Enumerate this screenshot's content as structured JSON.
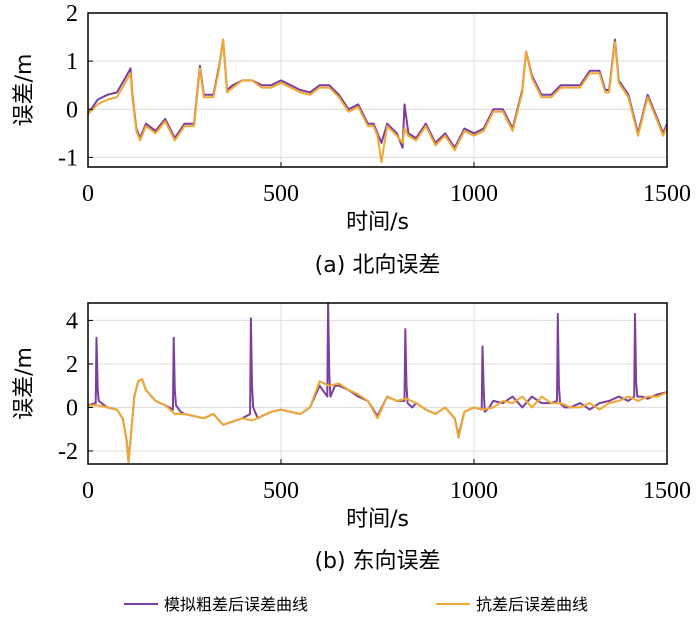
{
  "colors": {
    "series1": "#7b3f9e",
    "series2": "#f0a830",
    "grid": "#dcdcdc",
    "axis": "#000000"
  },
  "legend": {
    "position": "bottom-center"
  },
  "chart_data": [
    {
      "type": "line",
      "caption": "(a) 北向误差",
      "xlabel": "时间/s",
      "ylabel": "误差/m",
      "xlim": [
        0,
        1500
      ],
      "ylim": [
        -1.2,
        2
      ],
      "xticks": [
        0,
        500,
        1000,
        1500
      ],
      "yticks": [
        -1,
        0,
        1,
        2
      ],
      "grid": true,
      "series": [
        {
          "name": "模拟粗差后误差曲线",
          "color": "#7b3f9e",
          "x": [
            0,
            25,
            50,
            75,
            100,
            110,
            115,
            125,
            135,
            150,
            175,
            200,
            225,
            250,
            275,
            290,
            300,
            325,
            340,
            350,
            360,
            375,
            400,
            425,
            450,
            475,
            500,
            525,
            550,
            575,
            600,
            625,
            650,
            675,
            700,
            725,
            740,
            750,
            760,
            775,
            800,
            815,
            820,
            830,
            850,
            875,
            900,
            925,
            950,
            975,
            1000,
            1025,
            1050,
            1075,
            1100,
            1125,
            1135,
            1150,
            1175,
            1200,
            1225,
            1250,
            1275,
            1300,
            1325,
            1340,
            1350,
            1365,
            1375,
            1400,
            1425,
            1450,
            1475,
            1490,
            1500
          ],
          "y": [
            -0.1,
            0.2,
            0.3,
            0.35,
            0.7,
            0.85,
            0.3,
            -0.4,
            -0.6,
            -0.3,
            -0.45,
            -0.2,
            -0.6,
            -0.3,
            -0.3,
            0.9,
            0.3,
            0.3,
            0.9,
            1.45,
            0.4,
            0.5,
            0.6,
            0.6,
            0.5,
            0.5,
            0.6,
            0.5,
            0.4,
            0.35,
            0.5,
            0.5,
            0.3,
            0.0,
            0.1,
            -0.3,
            -0.3,
            -0.5,
            -0.7,
            -0.3,
            -0.5,
            -0.8,
            0.1,
            -0.5,
            -0.6,
            -0.3,
            -0.7,
            -0.5,
            -0.8,
            -0.4,
            -0.5,
            -0.4,
            0.0,
            0.0,
            -0.4,
            0.4,
            1.2,
            0.7,
            0.3,
            0.3,
            0.5,
            0.5,
            0.5,
            0.8,
            0.8,
            0.4,
            0.4,
            1.45,
            0.6,
            0.3,
            -0.5,
            0.3,
            -0.2,
            -0.5,
            -0.3
          ]
        },
        {
          "name": "抗差后误差曲线",
          "color": "#f0a830",
          "x": [
            0,
            25,
            50,
            75,
            100,
            110,
            115,
            125,
            135,
            150,
            175,
            200,
            225,
            250,
            275,
            290,
            300,
            325,
            340,
            350,
            360,
            375,
            400,
            425,
            450,
            475,
            500,
            525,
            550,
            575,
            600,
            625,
            650,
            675,
            700,
            725,
            740,
            750,
            760,
            775,
            800,
            815,
            820,
            830,
            850,
            875,
            900,
            925,
            950,
            975,
            1000,
            1025,
            1050,
            1075,
            1100,
            1125,
            1135,
            1150,
            1175,
            1200,
            1225,
            1250,
            1275,
            1300,
            1325,
            1340,
            1350,
            1365,
            1375,
            1400,
            1425,
            1450,
            1475,
            1490,
            1500
          ],
          "y": [
            -0.1,
            0.1,
            0.2,
            0.25,
            0.6,
            0.75,
            0.25,
            -0.45,
            -0.65,
            -0.35,
            -0.5,
            -0.25,
            -0.65,
            -0.35,
            -0.35,
            0.85,
            0.25,
            0.25,
            0.85,
            1.45,
            0.35,
            0.45,
            0.6,
            0.6,
            0.45,
            0.45,
            0.55,
            0.45,
            0.35,
            0.3,
            0.45,
            0.45,
            0.25,
            -0.05,
            0.05,
            -0.35,
            -0.35,
            -0.55,
            -1.1,
            -0.35,
            -0.55,
            -0.7,
            -0.4,
            -0.55,
            -0.65,
            -0.35,
            -0.75,
            -0.55,
            -0.85,
            -0.45,
            -0.55,
            -0.45,
            -0.05,
            -0.05,
            -0.45,
            0.35,
            1.2,
            0.65,
            0.25,
            0.25,
            0.45,
            0.45,
            0.45,
            0.75,
            0.75,
            0.35,
            0.35,
            1.4,
            0.55,
            0.25,
            -0.55,
            0.25,
            -0.25,
            -0.55,
            -0.35
          ]
        }
      ]
    },
    {
      "type": "line",
      "caption": "(b) 东向误差",
      "xlabel": "时间/s",
      "ylabel": "误差/m",
      "xlim": [
        0,
        1500
      ],
      "ylim": [
        -2.6,
        4.8
      ],
      "xticks": [
        0,
        500,
        1000,
        1500
      ],
      "yticks": [
        -2,
        0,
        2,
        4
      ],
      "grid": true,
      "series": [
        {
          "name": "模拟粗差后误差曲线",
          "color": "#7b3f9e",
          "x": [
            0,
            20,
            22,
            25,
            28,
            35,
            50,
            75,
            90,
            100,
            105,
            110,
            120,
            130,
            140,
            150,
            175,
            200,
            220,
            222,
            225,
            228,
            240,
            250,
            275,
            300,
            325,
            350,
            400,
            420,
            422,
            425,
            428,
            440,
            450,
            475,
            500,
            525,
            550,
            575,
            600,
            620,
            622,
            625,
            628,
            640,
            650,
            675,
            700,
            725,
            750,
            775,
            800,
            820,
            822,
            825,
            828,
            840,
            850,
            875,
            900,
            925,
            950,
            960,
            975,
            1000,
            1020,
            1022,
            1025,
            1028,
            1040,
            1050,
            1075,
            1100,
            1125,
            1150,
            1175,
            1200,
            1215,
            1217,
            1220,
            1223,
            1235,
            1250,
            1275,
            1300,
            1325,
            1350,
            1375,
            1400,
            1415,
            1417,
            1420,
            1423,
            1435,
            1450,
            1475,
            1500
          ],
          "y": [
            0.1,
            0.2,
            3.2,
            0.8,
            0.3,
            0.2,
            0.0,
            -0.1,
            -0.5,
            -1.5,
            -2.5,
            -1.5,
            0.5,
            1.2,
            1.3,
            0.8,
            0.3,
            0.1,
            -0.1,
            3.2,
            0.8,
            0.1,
            -0.2,
            -0.3,
            -0.4,
            -0.5,
            -0.3,
            -0.8,
            -0.5,
            -0.3,
            4.1,
            1.0,
            0.0,
            -0.5,
            -0.4,
            -0.2,
            -0.1,
            -0.2,
            -0.3,
            0.0,
            1.0,
            0.5,
            4.8,
            1.5,
            0.5,
            1.0,
            1.0,
            0.8,
            0.5,
            0.3,
            -0.4,
            0.5,
            0.3,
            0.3,
            3.6,
            1.0,
            0.2,
            0.0,
            0.2,
            -0.1,
            -0.3,
            0.0,
            -0.5,
            -1.3,
            -0.2,
            0.0,
            -0.1,
            2.8,
            0.8,
            -0.2,
            0.0,
            0.3,
            0.2,
            0.5,
            0.0,
            0.5,
            0.2,
            0.2,
            0.3,
            4.3,
            1.0,
            0.2,
            0.0,
            0.0,
            0.2,
            -0.1,
            0.2,
            0.3,
            0.5,
            0.3,
            0.5,
            4.3,
            1.2,
            0.5,
            0.5,
            0.4,
            0.6,
            0.7
          ]
        },
        {
          "name": "抗差后误差曲线",
          "color": "#f0a830",
          "x": [
            0,
            25,
            50,
            75,
            90,
            100,
            105,
            110,
            120,
            130,
            140,
            150,
            175,
            200,
            225,
            250,
            275,
            300,
            325,
            350,
            400,
            425,
            450,
            475,
            500,
            525,
            550,
            575,
            600,
            625,
            650,
            675,
            700,
            725,
            750,
            775,
            800,
            825,
            850,
            875,
            900,
            925,
            950,
            960,
            975,
            1000,
            1025,
            1050,
            1075,
            1100,
            1125,
            1150,
            1175,
            1200,
            1225,
            1250,
            1275,
            1300,
            1325,
            1350,
            1375,
            1400,
            1425,
            1450,
            1475,
            1500
          ],
          "y": [
            0.1,
            0.1,
            0.0,
            -0.1,
            -0.5,
            -1.5,
            -2.5,
            -1.5,
            0.5,
            1.2,
            1.3,
            0.8,
            0.3,
            0.1,
            -0.3,
            -0.3,
            -0.4,
            -0.5,
            -0.3,
            -0.8,
            -0.5,
            -0.6,
            -0.4,
            -0.2,
            -0.1,
            -0.2,
            -0.3,
            0.0,
            1.2,
            1.0,
            1.1,
            0.8,
            0.6,
            0.3,
            -0.5,
            0.5,
            0.3,
            0.4,
            0.2,
            -0.1,
            -0.3,
            0.0,
            -0.5,
            -1.4,
            -0.2,
            0.0,
            -0.1,
            0.0,
            0.3,
            0.2,
            0.5,
            0.0,
            0.5,
            0.2,
            0.2,
            0.0,
            0.0,
            0.2,
            -0.1,
            0.2,
            0.3,
            0.5,
            0.3,
            0.5,
            0.5,
            0.7
          ]
        }
      ]
    }
  ]
}
